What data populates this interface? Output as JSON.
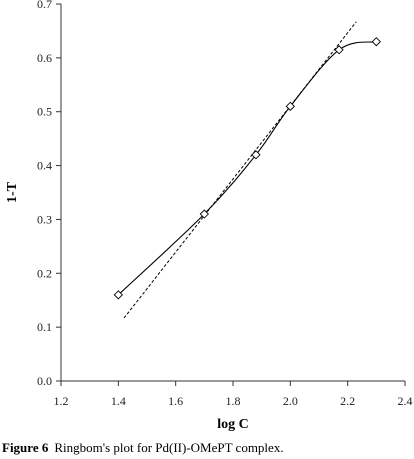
{
  "chart_data": {
    "type": "scatter",
    "xlabel": "log C",
    "ylabel": "1-T",
    "xlim": [
      1.2,
      2.4
    ],
    "ylim": [
      0.0,
      0.7
    ],
    "x_ticks": [
      "1.2",
      "1.4",
      "1.6",
      "1.8",
      "2.0",
      "2.2",
      "2.4"
    ],
    "y_ticks": [
      "0.0",
      "0.1",
      "0.2",
      "0.3",
      "0.4",
      "0.5",
      "0.6",
      "0.7"
    ],
    "grid": false,
    "legend": "none",
    "series": [
      {
        "marker": "diamond-open",
        "line": "smooth-solid",
        "x": [
          1.4,
          1.7,
          1.88,
          2.0,
          2.17,
          2.3
        ],
        "y": [
          0.16,
          0.31,
          0.42,
          0.51,
          0.615,
          0.63
        ]
      }
    ],
    "trendline": {
      "style": "dashed",
      "x": [
        1.42,
        2.23
      ],
      "y": [
        0.117,
        0.667
      ]
    }
  },
  "caption": {
    "label": "Figure 6",
    "text": "Ringbom's plot for Pd(II)-OMePT complex."
  },
  "colors": {
    "series": "#000000",
    "axis": "#333333"
  }
}
